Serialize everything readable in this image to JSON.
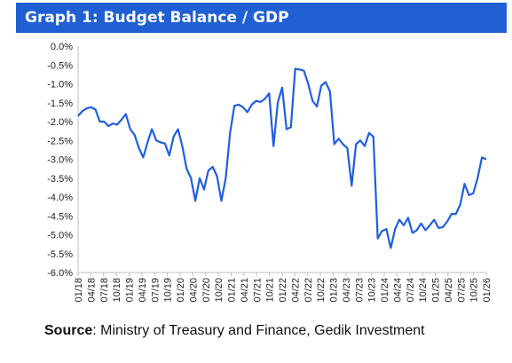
{
  "header": {
    "title": "Graph 1: Budget Balance / GDP"
  },
  "source": {
    "label": "Source",
    "text": ": Ministry of Treasury and Finance, Gedik Investment"
  },
  "chart_data": {
    "type": "line",
    "title": "Graph 1: Budget Balance / GDP",
    "xlabel": "",
    "ylabel": "",
    "ylim": [
      -6.0,
      0.0
    ],
    "ytick_step": 0.5,
    "grid": false,
    "legend": "none",
    "y_ticks": [
      "0.0%",
      "-0.5%",
      "-1.0%",
      "-1.5%",
      "-2.0%",
      "-2.5%",
      "-3.0%",
      "-3.5%",
      "-4.0%",
      "-4.5%",
      "-5.0%",
      "-5.5%",
      "-6.0%"
    ],
    "x_ticks": [
      "01/18",
      "04/18",
      "07/18",
      "10/18",
      "01/19",
      "04/19",
      "07/19",
      "10/19",
      "01/20",
      "04/20",
      "07/20",
      "10/20",
      "01/21",
      "04/21",
      "07/21",
      "10/21",
      "01/22",
      "04/22",
      "07/22",
      "10/22",
      "01/23",
      "04/23",
      "07/23",
      "10/23",
      "01/24",
      "04/24",
      "07/24",
      "10/24",
      "01/25",
      "04/25",
      "07/25",
      "10/25",
      "01/26"
    ],
    "line_color": "#1f5fe0",
    "series": [
      {
        "values": [
          -1.85,
          -1.72,
          -1.65,
          -1.62,
          -1.68,
          -2.0,
          -2.0,
          -2.12,
          -2.05,
          -2.08,
          -1.95,
          -1.8,
          -2.2,
          -2.35,
          -2.7,
          -2.95,
          -2.55,
          -2.2,
          -2.5,
          -2.55,
          -2.58,
          -2.9,
          -2.4,
          -2.2,
          -2.65,
          -3.25,
          -3.5,
          -4.1,
          -3.5,
          -3.8,
          -3.3,
          -3.2,
          -3.45,
          -4.1,
          -3.5,
          -2.3,
          -1.58,
          -1.55,
          -1.62,
          -1.75,
          -1.55,
          -1.45,
          -1.48,
          -1.4,
          -1.25,
          -2.65,
          -1.48,
          -1.1,
          -2.2,
          -2.15,
          -0.6,
          -0.62,
          -0.65,
          -1.0,
          -1.45,
          -1.6,
          -1.05,
          -0.95,
          -1.2,
          -2.6,
          -2.45,
          -2.6,
          -2.7,
          -3.7,
          -2.6,
          -2.5,
          -2.65,
          -2.3,
          -2.4,
          -5.1,
          -4.9,
          -4.85,
          -5.35,
          -4.85,
          -4.6,
          -4.75,
          -4.55,
          -4.95,
          -4.88,
          -4.7,
          -4.88,
          -4.75,
          -4.6,
          -4.82,
          -4.8,
          -4.65,
          -4.45,
          -4.45,
          -4.2,
          -3.65,
          -3.95,
          -3.9,
          -3.5,
          -2.95,
          -3.0
        ]
      }
    ]
  }
}
